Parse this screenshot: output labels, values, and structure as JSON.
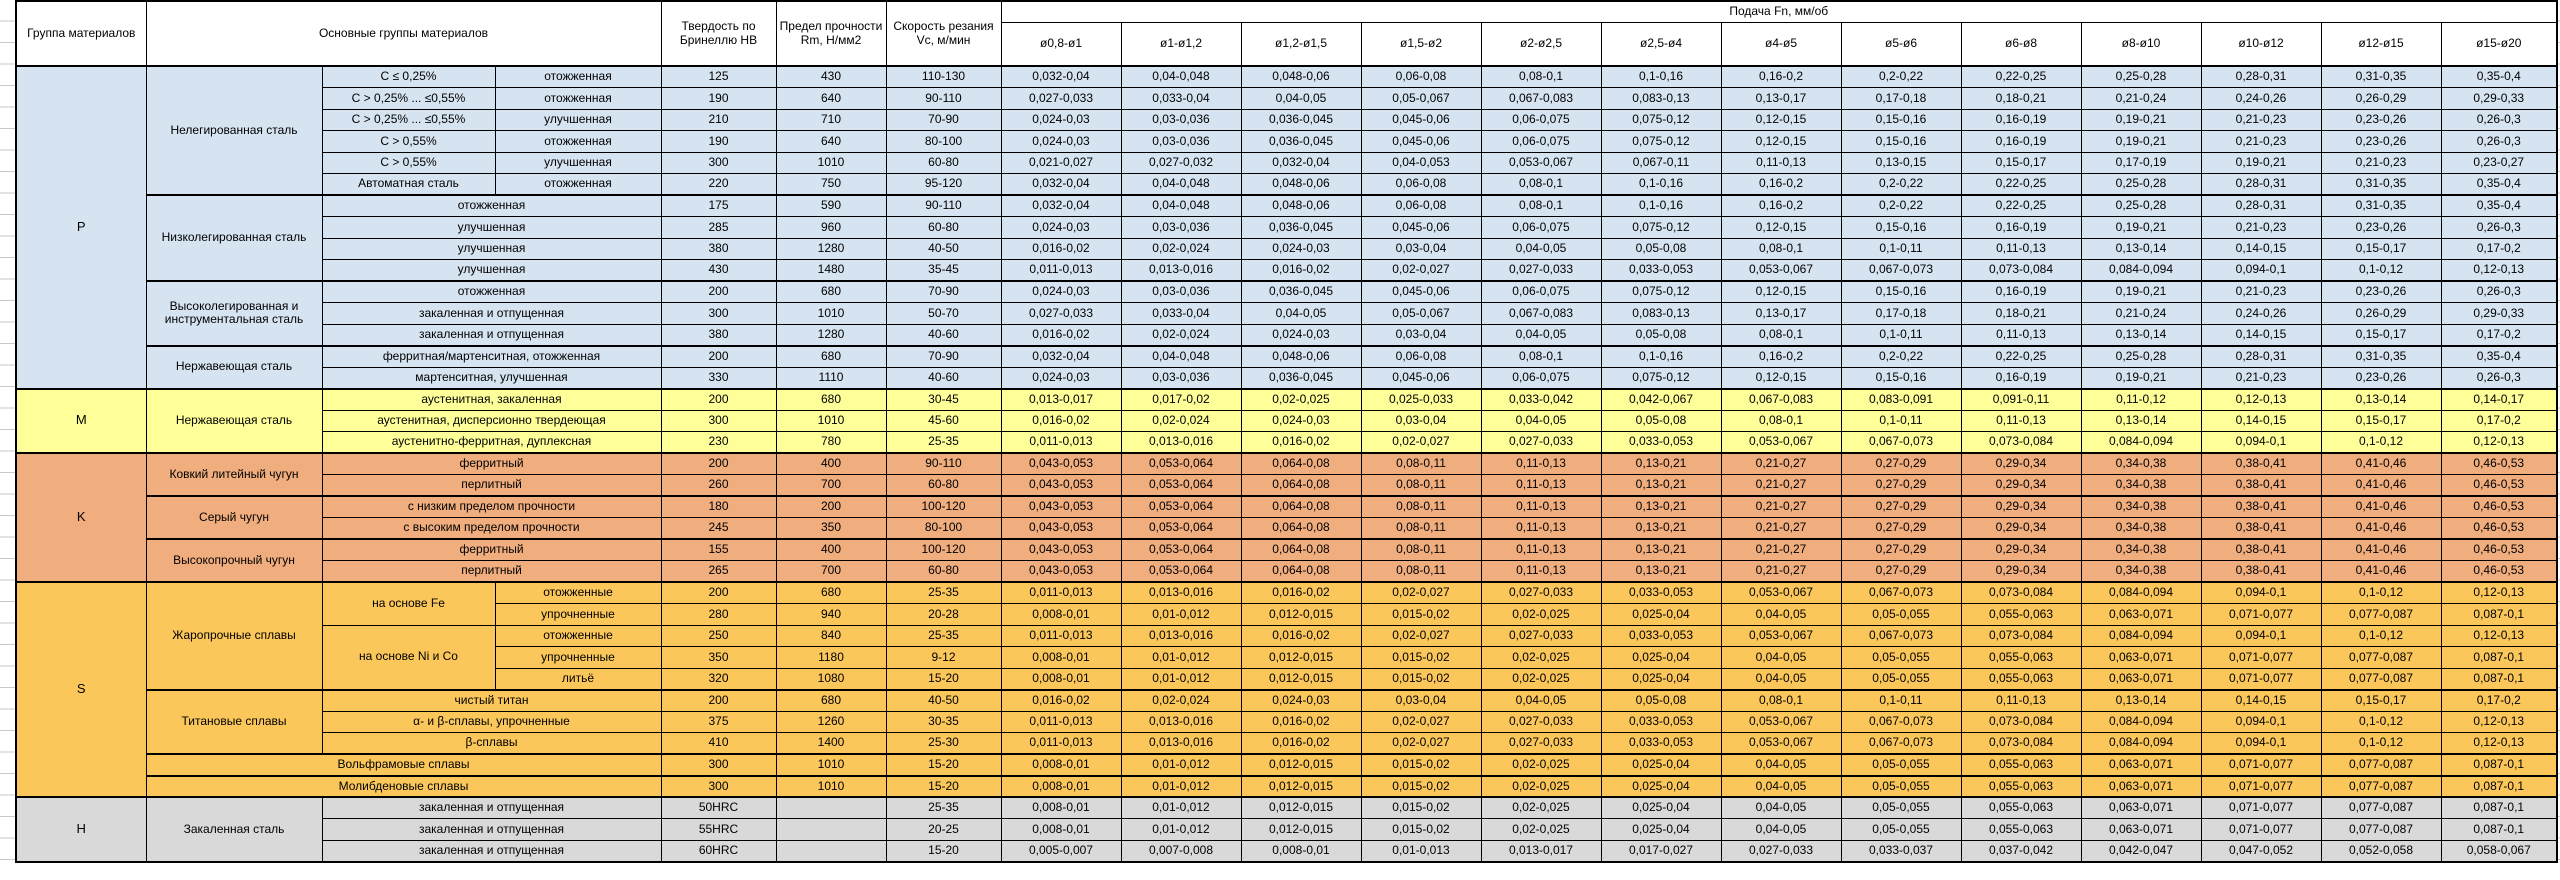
{
  "header": {
    "group_col": "Группа материалов",
    "main_col": "Основные группы материалов",
    "hardness_col": "Твердость по Бринеллю НВ",
    "strength_col": "Предел прочности Rm, Н/мм2",
    "speed_col": "Скорость резания Vc, м/мин",
    "feed_col": "Подача Fn, мм/об"
  },
  "diameter_columns": [
    "ø0,8-ø1",
    "ø1-ø1,2",
    "ø1,2-ø1,5",
    "ø1,5-ø2",
    "ø2-ø2,5",
    "ø2,5-ø4",
    "ø4-ø5",
    "ø5-ø6",
    "ø6-ø8",
    "ø8-ø10",
    "ø10-ø12",
    "ø12-ø15",
    "ø15-ø20"
  ],
  "feed_profiles": {
    "A": [
      "0,032-0,04",
      "0,04-0,048",
      "0,048-0,06",
      "0,06-0,08",
      "0,08-0,1",
      "0,1-0,16",
      "0,16-0,2",
      "0,2-0,22",
      "0,22-0,25",
      "0,25-0,28",
      "0,28-0,31",
      "0,31-0,35",
      "0,35-0,4"
    ],
    "B": [
      "0,027-0,033",
      "0,033-0,04",
      "0,04-0,05",
      "0,05-0,067",
      "0,067-0,083",
      "0,083-0,13",
      "0,13-0,17",
      "0,17-0,18",
      "0,18-0,21",
      "0,21-0,24",
      "0,24-0,26",
      "0,26-0,29",
      "0,29-0,33"
    ],
    "C": [
      "0,024-0,03",
      "0,03-0,036",
      "0,036-0,045",
      "0,045-0,06",
      "0,06-0,075",
      "0,075-0,12",
      "0,12-0,15",
      "0,15-0,16",
      "0,16-0,19",
      "0,19-0,21",
      "0,21-0,23",
      "0,23-0,26",
      "0,26-0,3"
    ],
    "D": [
      "0,021-0,027",
      "0,027-0,032",
      "0,032-0,04",
      "0,04-0,053",
      "0,053-0,067",
      "0,067-0,11",
      "0,11-0,13",
      "0,13-0,15",
      "0,15-0,17",
      "0,17-0,19",
      "0,19-0,21",
      "0,21-0,23",
      "0,23-0,27"
    ],
    "E": [
      "0,016-0,02",
      "0,02-0,024",
      "0,024-0,03",
      "0,03-0,04",
      "0,04-0,05",
      "0,05-0,08",
      "0,08-0,1",
      "0,1-0,11",
      "0,11-0,13",
      "0,13-0,14",
      "0,14-0,15",
      "0,15-0,17",
      "0,17-0,2"
    ],
    "F": [
      "0,011-0,013",
      "0,013-0,016",
      "0,016-0,02",
      "0,02-0,027",
      "0,027-0,033",
      "0,033-0,053",
      "0,053-0,067",
      "0,067-0,073",
      "0,073-0,084",
      "0,084-0,094",
      "0,094-0,1",
      "0,1-0,12",
      "0,12-0,13"
    ],
    "G": [
      "0,013-0,017",
      "0,017-0,02",
      "0,02-0,025",
      "0,025-0,033",
      "0,033-0,042",
      "0,042-0,067",
      "0,067-0,083",
      "0,083-0,091",
      "0,091-0,11",
      "0,11-0,12",
      "0,12-0,13",
      "0,13-0,14",
      "0,14-0,17"
    ],
    "H": [
      "0,043-0,053",
      "0,053-0,064",
      "0,064-0,08",
      "0,08-0,11",
      "0,11-0,13",
      "0,13-0,21",
      "0,21-0,27",
      "0,27-0,29",
      "0,29-0,34",
      "0,34-0,38",
      "0,38-0,41",
      "0,41-0,46",
      "0,46-0,53"
    ],
    "I": [
      "0,008-0,01",
      "0,01-0,012",
      "0,012-0,015",
      "0,015-0,02",
      "0,02-0,025",
      "0,025-0,04",
      "0,04-0,05",
      "0,05-0,055",
      "0,055-0,063",
      "0,063-0,071",
      "0,071-0,077",
      "0,077-0,087",
      "0,087-0,1"
    ],
    "J": [
      "0,005-0,007",
      "0,007-0,008",
      "0,008-0,01",
      "0,01-0,013",
      "0,013-0,017",
      "0,017-0,027",
      "0,027-0,033",
      "0,033-0,037",
      "0,037-0,042",
      "0,042-0,047",
      "0,047-0,052",
      "0,052-0,058",
      "0,058-0,067"
    ]
  },
  "groups": [
    {
      "code": "P",
      "color": "#D6E4F2",
      "rows": [
        {
          "material": {
            "text": "Нелегированная сталь",
            "span": 6
          },
          "sub1": "С ≤ 0,25%",
          "sub2": "отожженная",
          "hb": "125",
          "rm": "430",
          "vc": "110-130",
          "feed": "A"
        },
        {
          "sub1": "С > 0,25% ... ≤0,55%",
          "sub2": "отожженная",
          "hb": "190",
          "rm": "640",
          "vc": "90-110",
          "feed": "B"
        },
        {
          "sub1": "С > 0,25% ... ≤0,55%",
          "sub2": "улучшенная",
          "hb": "210",
          "rm": "710",
          "vc": "70-90",
          "feed": "C"
        },
        {
          "sub1": "С > 0,55%",
          "sub2": "отожженная",
          "hb": "190",
          "rm": "640",
          "vc": "80-100",
          "feed": "C"
        },
        {
          "sub1": "С > 0,55%",
          "sub2": "улучшенная",
          "hb": "300",
          "rm": "1010",
          "vc": "60-80",
          "feed": "D"
        },
        {
          "sub1": "Автоматная сталь",
          "sub2": "отожженная",
          "hb": "220",
          "rm": "750",
          "vc": "95-120",
          "feed": "A"
        },
        {
          "material": {
            "text": "Низколегированная сталь",
            "span": 4
          },
          "subwide": "отожженная",
          "hb": "175",
          "rm": "590",
          "vc": "90-110",
          "feed": "A"
        },
        {
          "subwide": "улучшенная",
          "hb": "285",
          "rm": "960",
          "vc": "60-80",
          "feed": "C"
        },
        {
          "subwide": "улучшенная",
          "hb": "380",
          "rm": "1280",
          "vc": "40-50",
          "feed": "E"
        },
        {
          "subwide": "улучшенная",
          "hb": "430",
          "rm": "1480",
          "vc": "35-45",
          "feed": "F"
        },
        {
          "material": {
            "text": "Высоколегированная и инструментальная сталь",
            "span": 3
          },
          "subwide": "отожженная",
          "hb": "200",
          "rm": "680",
          "vc": "70-90",
          "feed": "C"
        },
        {
          "subwide": "закаленная и отпущенная",
          "hb": "300",
          "rm": "1010",
          "vc": "50-70",
          "feed": "B"
        },
        {
          "subwide": "закаленная и отпущенная",
          "hb": "380",
          "rm": "1280",
          "vc": "40-60",
          "feed": "E"
        },
        {
          "material": {
            "text": "Нержавеющая сталь",
            "span": 2
          },
          "subwide": "ферритная/мартенситная, отожженная",
          "hb": "200",
          "rm": "680",
          "vc": "70-90",
          "feed": "A"
        },
        {
          "subwide": "мартенситная, улучшенная",
          "hb": "330",
          "rm": "1110",
          "vc": "40-60",
          "feed": "C"
        }
      ]
    },
    {
      "code": "M",
      "color": "#FFFF99",
      "rows": [
        {
          "material": {
            "text": "Нержавеющая сталь",
            "span": 3
          },
          "subwide": "аустенитная, закаленная",
          "hb": "200",
          "rm": "680",
          "vc": "30-45",
          "feed": "G"
        },
        {
          "subwide": "аустенитная, дисперсионно твердеющая",
          "hb": "300",
          "rm": "1010",
          "vc": "45-60",
          "feed": "E"
        },
        {
          "subwide": "аустенитно-ферритная, дуплексная",
          "hb": "230",
          "rm": "780",
          "vc": "25-35",
          "feed": "F"
        }
      ]
    },
    {
      "code": "K",
      "color": "#F0AD7E",
      "rows": [
        {
          "material": {
            "text": "Ковкий литейный чугун",
            "span": 2
          },
          "subwide": "ферритный",
          "hb": "200",
          "rm": "400",
          "vc": "90-110",
          "feed": "H"
        },
        {
          "subwide": "перлитный",
          "hb": "260",
          "rm": "700",
          "vc": "60-80",
          "feed": "H"
        },
        {
          "material": {
            "text": "Серый чугун",
            "span": 2
          },
          "subwide": "с низким пределом прочности",
          "hb": "180",
          "rm": "200",
          "vc": "100-120",
          "feed": "H"
        },
        {
          "subwide": "с высоким пределом прочности",
          "hb": "245",
          "rm": "350",
          "vc": "80-100",
          "feed": "H"
        },
        {
          "material": {
            "text": "Высокопрочный чугун",
            "span": 2
          },
          "subwide": "ферритный",
          "hb": "155",
          "rm": "400",
          "vc": "100-120",
          "feed": "H"
        },
        {
          "subwide": "перлитный",
          "hb": "265",
          "rm": "700",
          "vc": "60-80",
          "feed": "H"
        }
      ]
    },
    {
      "code": "S",
      "color": "#FBC75B",
      "rows": [
        {
          "material": {
            "text": "Жаропрочные сплавы",
            "span": 5
          },
          "sub1x": {
            "text": "на основе Fe",
            "span": 2
          },
          "sub2": "отожженные",
          "hb": "200",
          "rm": "680",
          "vc": "25-35",
          "feed": "F"
        },
        {
          "sub2": "упрочненные",
          "hb": "280",
          "rm": "940",
          "vc": "20-28",
          "feed": "I"
        },
        {
          "sub1x": {
            "text": "на основе Ni и Co",
            "span": 3
          },
          "sub2": "отожженные",
          "hb": "250",
          "rm": "840",
          "vc": "25-35",
          "feed": "F"
        },
        {
          "sub2": "упрочненные",
          "hb": "350",
          "rm": "1180",
          "vc": "9-12",
          "feed": "I"
        },
        {
          "sub2": "литьё",
          "hb": "320",
          "rm": "1080",
          "vc": "15-20",
          "feed": "I"
        },
        {
          "material": {
            "text": "Титановые сплавы",
            "span": 3
          },
          "subwide": "чистый титан",
          "hb": "200",
          "rm": "680",
          "vc": "40-50",
          "feed": "E"
        },
        {
          "subwide": "α- и β-сплавы, упрочненные",
          "hb": "375",
          "rm": "1260",
          "vc": "30-35",
          "feed": "F"
        },
        {
          "subwide": "β-сплавы",
          "hb": "410",
          "rm": "1400",
          "vc": "25-30",
          "feed": "F"
        },
        {
          "matwide": "Вольфрамовые сплавы",
          "hb": "300",
          "rm": "1010",
          "vc": "15-20",
          "feed": "I"
        },
        {
          "matwide": "Молибденовые сплавы",
          "hb": "300",
          "rm": "1010",
          "vc": "15-20",
          "feed": "I"
        }
      ]
    },
    {
      "code": "H",
      "color": "#D9D9D9",
      "rows": [
        {
          "material": {
            "text": "Закаленная сталь",
            "span": 3
          },
          "subwide": "закаленная и отпущенная",
          "hb": "50HRC",
          "rm": "",
          "vc": "25-35",
          "feed": "I"
        },
        {
          "subwide": "закаленная и отпущенная",
          "hb": "55HRC",
          "rm": "",
          "vc": "20-25",
          "feed": "I"
        },
        {
          "subwide": "закаленная и отпущенная",
          "hb": "60HRC",
          "rm": "",
          "vc": "15-20",
          "feed": "J"
        }
      ]
    }
  ]
}
